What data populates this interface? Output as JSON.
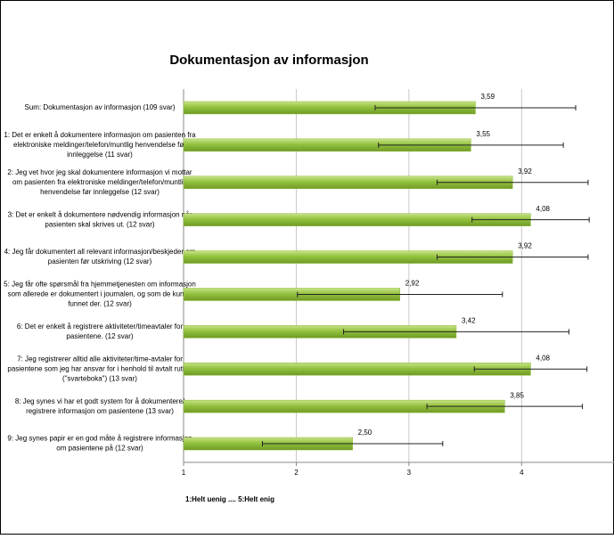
{
  "chart_data": {
    "type": "bar",
    "orientation": "horizontal",
    "title": "Dokumentasjon av informasjon",
    "footnote": "1:Helt uenig .... 5:Helt enig",
    "color": "#8cbb36",
    "grid": true,
    "categories": [
      [
        "Sum: Dokumentasjon av informasjon (109 svar)"
      ],
      [
        "1: Det er enkelt å dokumentere informasjon om pasienten fra",
        "elektroniske meldinger/telefon/muntlig henvendelse før",
        "innleggelse (11 svar)"
      ],
      [
        "2: Jeg vet hvor jeg skal dokumentere informasjon vi mottar",
        "om pasienten fra elektroniske meldinger/telefon/muntlig",
        "henvendelse før innleggelse (12 svar)"
      ],
      [
        "3: Det er enkelt å dokumentere nødvendig informasjon når",
        "pasienten skal skrives ut. (12 svar)"
      ],
      [
        "4: Jeg får dokumentert all relevant informasjon/beskjeder om",
        "pasienten før utskriving (12 svar)"
      ],
      [
        "5: Jeg får ofte spørsmål fra hjemmetjenesten om informasjon",
        "som allerede er dokumentert i journalen, og som de kunne",
        "funnet der. (12 svar)"
      ],
      [
        "6: Det er enkelt å registrere aktiviteter/timeavtaler for",
        "pasientene. (12 svar)"
      ],
      [
        "7: Jeg registrerer alltid alle aktiviteter/time-avtaler for",
        "pasientene som jeg har ansvar for i henhold til avtalt rutine",
        "(\"svarteboka\") (13 svar)"
      ],
      [
        "8: Jeg synes vi har et godt system for å dokumentere/",
        "registrere informasjon om pasientene (13 svar)"
      ],
      [
        "9: Jeg synes papir er en god måte å registrere informasjon",
        "om pasientene på (12 svar)"
      ]
    ],
    "values": [
      3.59,
      3.55,
      3.92,
      4.08,
      3.92,
      2.92,
      3.42,
      4.08,
      3.85,
      2.5
    ],
    "value_labels": [
      "3,59",
      "3,55",
      "3,92",
      "4,08",
      "3,92",
      "2,92",
      "3,42",
      "4,08",
      "3,85",
      "2,50"
    ],
    "errors": [
      0.89,
      0.82,
      0.67,
      0.52,
      0.67,
      0.91,
      1.0,
      0.5,
      0.69,
      0.8
    ],
    "xlim": [
      1,
      4.82
    ],
    "xticks": [
      1,
      2,
      3,
      4
    ]
  }
}
